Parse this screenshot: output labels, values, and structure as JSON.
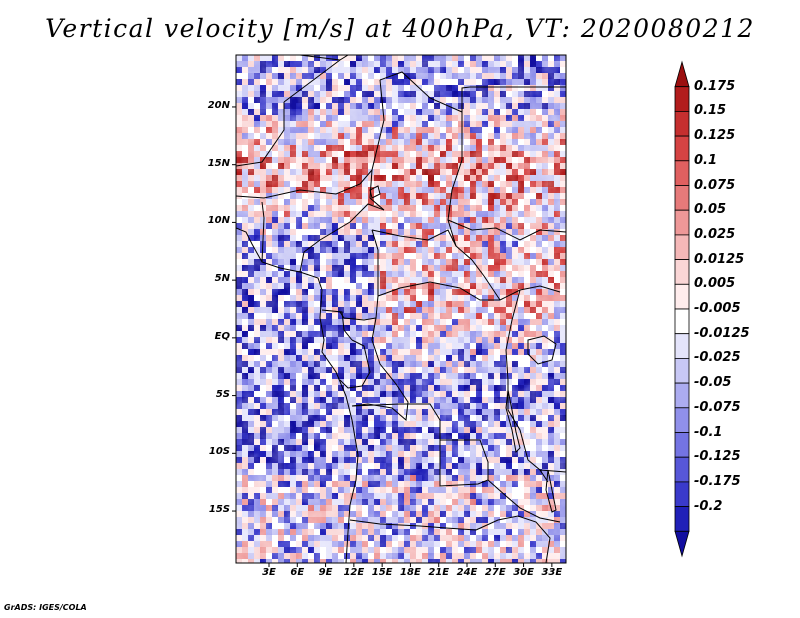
{
  "title": "Vertical velocity [m/s] at 400hPa, VT: 2020080212",
  "credit": "GrADS: IGES/COLA",
  "map": {
    "variable": "Vertical velocity",
    "units": "m/s",
    "level": "400hPa",
    "valid_time": "2020080212",
    "lat_range_deg": [
      -19.5,
      24.5
    ],
    "lon_range_deg": [
      -0.5,
      34.5
    ],
    "lat_ticks": [
      "20N",
      "15N",
      "10N",
      "5N",
      "EQ",
      "5S",
      "10S",
      "15S"
    ],
    "lon_ticks": [
      "3E",
      "6E",
      "9E",
      "12E",
      "15E",
      "18E",
      "21E",
      "24E",
      "27E",
      "30E",
      "33E"
    ]
  },
  "colorbar": {
    "labels": [
      "0.175",
      "0.15",
      "0.125",
      "0.1",
      "0.075",
      "0.05",
      "0.025",
      "0.0125",
      "0.005",
      "-0.005",
      "-0.0125",
      "-0.025",
      "-0.05",
      "-0.075",
      "-0.1",
      "-0.125",
      "-0.175",
      "-0.2"
    ],
    "colors": [
      "#9b0f0f",
      "#b21c1c",
      "#c52f2f",
      "#d54343",
      "#e06060",
      "#e67a7a",
      "#ee9898",
      "#f5b8b8",
      "#fad6d6",
      "#ffeded",
      "#ffffff",
      "#e4e4fb",
      "#c8c8f5",
      "#acacf0",
      "#9090ea",
      "#7474e3",
      "#5757d8",
      "#3a3acb",
      "#2020b8",
      "#120ea0"
    ]
  }
}
